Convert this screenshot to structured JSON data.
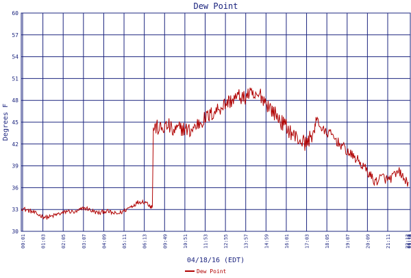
{
  "chart_data": {
    "type": "line",
    "title": "Dew Point",
    "xlabel": "04/18/16 (EDT)",
    "ylabel": "Degrees F",
    "ylim": [
      30,
      60
    ],
    "yticks": [
      30,
      33,
      36,
      39,
      42,
      45,
      48,
      51,
      54,
      57,
      60
    ],
    "xticks": [
      "00:01",
      "01:03",
      "02:05",
      "03:07",
      "04:09",
      "05:11",
      "06:13",
      "09:49",
      "10:51",
      "11:53",
      "12:55",
      "13:57",
      "14:59",
      "16:01",
      "17:03",
      "18:05",
      "19:07",
      "20:09",
      "21:11",
      "22:13",
      "23:15",
      "23:16",
      "23:18"
    ],
    "grid": true,
    "legend": "bottom",
    "colors": {
      "series": "#b00000",
      "grid": "#1a237e",
      "text": "#1a237e"
    },
    "series": [
      {
        "name": "Dew Point",
        "points": [
          [
            0,
            33.2
          ],
          [
            0.2,
            33.0
          ],
          [
            0.4,
            32.8
          ],
          [
            0.6,
            32.6
          ],
          [
            0.8,
            32.3
          ],
          [
            1.0,
            32.1
          ],
          [
            1.2,
            31.9
          ],
          [
            1.4,
            32.0
          ],
          [
            1.6,
            32.2
          ],
          [
            1.8,
            32.4
          ],
          [
            2.0,
            32.5
          ],
          [
            2.2,
            32.8
          ],
          [
            2.4,
            32.7
          ],
          [
            2.6,
            32.6
          ],
          [
            2.8,
            32.9
          ],
          [
            3.0,
            33.2
          ],
          [
            3.2,
            33.1
          ],
          [
            3.4,
            32.8
          ],
          [
            3.6,
            32.6
          ],
          [
            3.8,
            32.5
          ],
          [
            4.0,
            32.8
          ],
          [
            4.2,
            32.7
          ],
          [
            4.4,
            32.5
          ],
          [
            4.6,
            32.4
          ],
          [
            4.8,
            32.6
          ],
          [
            5.0,
            32.9
          ],
          [
            5.2,
            33.3
          ],
          [
            5.4,
            33.6
          ],
          [
            5.6,
            34.0
          ],
          [
            5.8,
            34.1
          ],
          [
            6.0,
            34.0
          ],
          [
            6.2,
            33.5
          ],
          [
            6.3,
            33.4
          ],
          [
            6.35,
            44.2
          ],
          [
            6.5,
            44.3
          ],
          [
            6.7,
            44.0
          ],
          [
            6.9,
            44.3
          ],
          [
            7.1,
            44.5
          ],
          [
            7.3,
            43.6
          ],
          [
            7.5,
            44.0
          ],
          [
            7.7,
            44.2
          ],
          [
            7.9,
            44.0
          ],
          [
            8.1,
            43.8
          ],
          [
            8.3,
            44.2
          ],
          [
            8.5,
            44.8
          ],
          [
            8.7,
            45.2
          ],
          [
            8.9,
            45.6
          ],
          [
            9.1,
            46.0
          ],
          [
            9.3,
            46.5
          ],
          [
            9.5,
            46.9
          ],
          [
            9.7,
            47.3
          ],
          [
            9.9,
            47.7
          ],
          [
            10.1,
            48.0
          ],
          [
            10.3,
            48.3
          ],
          [
            10.5,
            48.6
          ],
          [
            10.7,
            48.2
          ],
          [
            10.9,
            48.9
          ],
          [
            11.1,
            48.6
          ],
          [
            11.3,
            48.3
          ],
          [
            11.5,
            48.8
          ],
          [
            11.7,
            48.0
          ],
          [
            11.9,
            47.2
          ],
          [
            12.1,
            46.5
          ],
          [
            12.3,
            45.8
          ],
          [
            12.5,
            45.0
          ],
          [
            12.7,
            44.5
          ],
          [
            12.9,
            43.8
          ],
          [
            13.1,
            43.2
          ],
          [
            13.3,
            42.7
          ],
          [
            13.5,
            42.4
          ],
          [
            13.7,
            42.0
          ],
          [
            13.9,
            43.0
          ],
          [
            14.1,
            43.8
          ],
          [
            14.2,
            45.8
          ],
          [
            14.4,
            44.2
          ],
          [
            14.6,
            43.6
          ],
          [
            14.8,
            43.5
          ],
          [
            15.0,
            43.0
          ],
          [
            15.2,
            42.3
          ],
          [
            15.4,
            41.8
          ],
          [
            15.6,
            41.2
          ],
          [
            15.8,
            40.6
          ],
          [
            16.0,
            40.2
          ],
          [
            16.2,
            39.7
          ],
          [
            16.4,
            39.0
          ],
          [
            16.6,
            38.4
          ],
          [
            16.8,
            37.6
          ],
          [
            17.0,
            36.8
          ],
          [
            17.2,
            37.2
          ],
          [
            17.4,
            37.5
          ],
          [
            17.6,
            37.0
          ],
          [
            17.8,
            37.4
          ],
          [
            18.0,
            37.8
          ],
          [
            18.2,
            38.2
          ],
          [
            18.4,
            37.0
          ],
          [
            18.6,
            36.8
          ]
        ]
      }
    ],
    "xrange": [
      0,
      18.7
    ]
  }
}
